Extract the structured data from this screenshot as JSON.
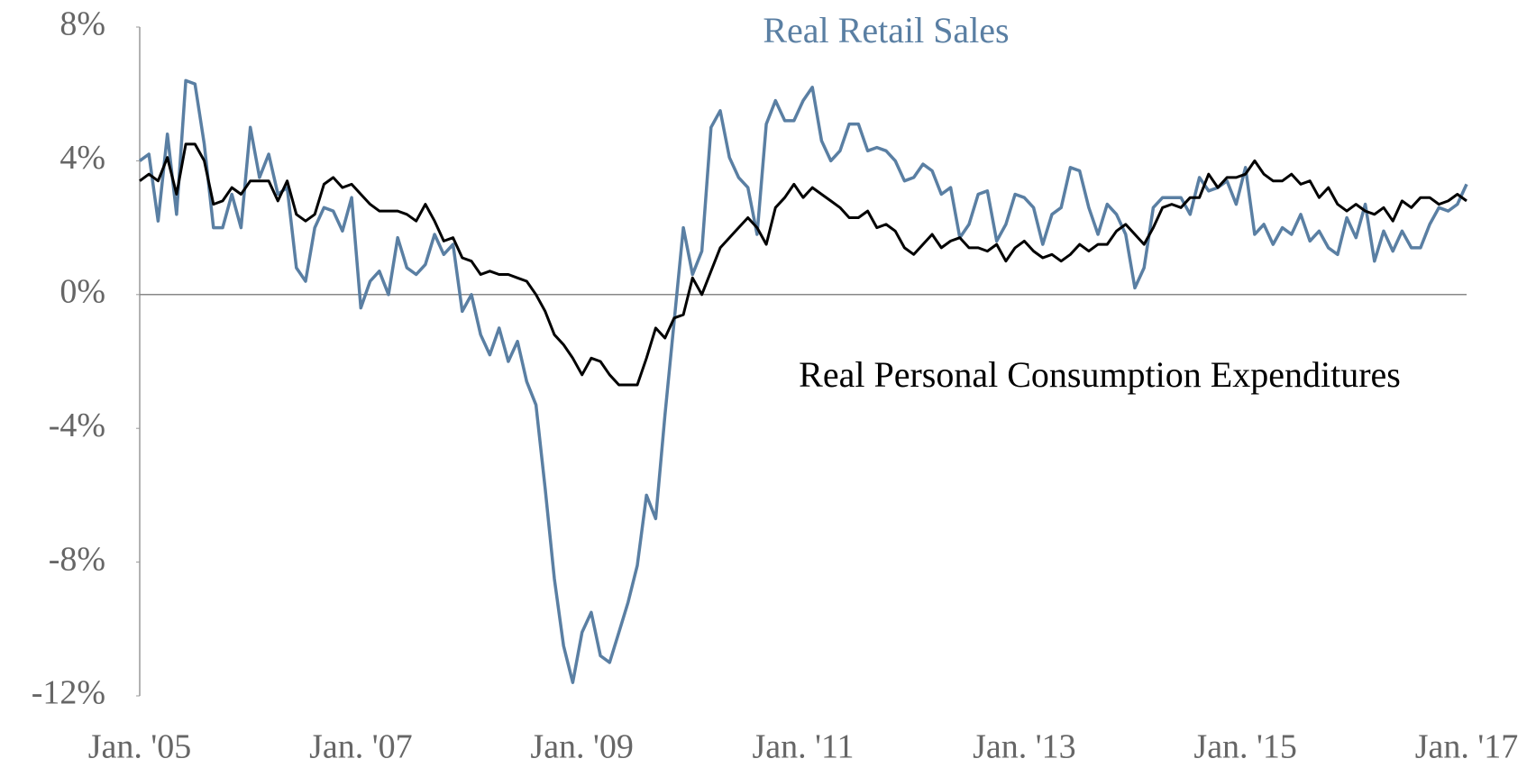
{
  "chart_data": {
    "type": "line",
    "categories": [
      "Jan. '05",
      null,
      null,
      null,
      null,
      null,
      null,
      null,
      null,
      null,
      null,
      null,
      null,
      null,
      null,
      null,
      null,
      null,
      null,
      null,
      null,
      null,
      null,
      null,
      "Jan. '07",
      null,
      null,
      null,
      null,
      null,
      null,
      null,
      null,
      null,
      null,
      null,
      null,
      null,
      null,
      null,
      null,
      null,
      null,
      null,
      null,
      null,
      null,
      null,
      "Jan. '09",
      null,
      null,
      null,
      null,
      null,
      null,
      null,
      null,
      null,
      null,
      null,
      null,
      null,
      null,
      null,
      null,
      null,
      null,
      null,
      null,
      null,
      null,
      null,
      "Jan. '11",
      null,
      null,
      null,
      null,
      null,
      null,
      null,
      null,
      null,
      null,
      null,
      null,
      null,
      null,
      null,
      null,
      null,
      null,
      null,
      null,
      null,
      null,
      null,
      "Jan. '13",
      null,
      null,
      null,
      null,
      null,
      null,
      null,
      null,
      null,
      null,
      null,
      null,
      null,
      null,
      null,
      null,
      null,
      null,
      null,
      null,
      null,
      null,
      null,
      "Jan. '15",
      null,
      null,
      null,
      null,
      null,
      null,
      null,
      null,
      null,
      null,
      null,
      null,
      null,
      null,
      null,
      null,
      null,
      null,
      null,
      null,
      null,
      null,
      null,
      "Jan. '17"
    ],
    "series": [
      {
        "name": "Real Retail Sales",
        "color": "#5a7fa3",
        "values": [
          4.0,
          4.2,
          2.2,
          4.8,
          2.4,
          6.4,
          6.3,
          4.5,
          2.0,
          2.0,
          3.0,
          2.0,
          5.0,
          3.5,
          4.2,
          3.0,
          3.2,
          0.8,
          0.4,
          2.0,
          2.6,
          2.5,
          1.9,
          2.9,
          -0.4,
          0.4,
          0.7,
          0.0,
          1.7,
          0.8,
          0.6,
          0.9,
          1.8,
          1.2,
          1.5,
          -0.5,
          0.0,
          -1.2,
          -1.8,
          -1.0,
          -2.0,
          -1.4,
          -2.6,
          -3.3,
          -5.8,
          -8.5,
          -10.5,
          -11.6,
          -10.1,
          -9.5,
          -10.8,
          -11.0,
          -10.1,
          -9.2,
          -8.1,
          -6.0,
          -6.7,
          -3.6,
          -0.8,
          2.0,
          0.6,
          1.3,
          5.0,
          5.5,
          4.1,
          3.5,
          3.2,
          1.8,
          5.1,
          5.8,
          5.2,
          5.2,
          5.8,
          6.2,
          4.6,
          4.0,
          4.3,
          5.1,
          5.1,
          4.3,
          4.4,
          4.3,
          4.0,
          3.4,
          3.5,
          3.9,
          3.7,
          3.0,
          3.2,
          1.7,
          2.1,
          3.0,
          3.1,
          1.6,
          2.1,
          3.0,
          2.9,
          2.6,
          1.5,
          2.4,
          2.6,
          3.8,
          3.7,
          2.6,
          1.8,
          2.7,
          2.4,
          1.8,
          0.2,
          0.8,
          2.6,
          2.9,
          2.9,
          2.9,
          2.4,
          3.5,
          3.1,
          3.2,
          3.4,
          2.7,
          3.8,
          1.8,
          2.1,
          1.5,
          2.0,
          1.8,
          2.4,
          1.6,
          1.9,
          1.4,
          1.2,
          2.3,
          1.7,
          2.7,
          1.0,
          1.9,
          1.3,
          1.9,
          1.4,
          1.4,
          2.1,
          2.6,
          2.5,
          2.7,
          3.3
        ]
      },
      {
        "name": "Real Personal Consumption Expenditures",
        "color": "#000000",
        "values": [
          3.4,
          3.6,
          3.4,
          4.1,
          3.0,
          4.5,
          4.5,
          4.0,
          2.7,
          2.8,
          3.2,
          3.0,
          3.4,
          3.4,
          3.4,
          2.8,
          3.4,
          2.4,
          2.2,
          2.4,
          3.3,
          3.5,
          3.2,
          3.3,
          3.0,
          2.7,
          2.5,
          2.5,
          2.5,
          2.4,
          2.2,
          2.7,
          2.2,
          1.6,
          1.7,
          1.1,
          1.0,
          0.6,
          0.7,
          0.6,
          0.6,
          0.5,
          0.4,
          0.0,
          -0.5,
          -1.2,
          -1.5,
          -1.9,
          -2.4,
          -1.9,
          -2.0,
          -2.4,
          -2.7,
          -2.7,
          -2.7,
          -1.9,
          -1.0,
          -1.3,
          -0.7,
          -0.6,
          0.5,
          0.0,
          0.7,
          1.4,
          1.7,
          2.0,
          2.3,
          2.0,
          1.5,
          2.6,
          2.9,
          3.3,
          2.9,
          3.2,
          3.0,
          2.8,
          2.6,
          2.3,
          2.3,
          2.5,
          2.0,
          2.1,
          1.9,
          1.4,
          1.2,
          1.5,
          1.8,
          1.4,
          1.6,
          1.7,
          1.4,
          1.4,
          1.3,
          1.5,
          1.0,
          1.4,
          1.6,
          1.3,
          1.1,
          1.2,
          1.0,
          1.2,
          1.5,
          1.3,
          1.5,
          1.5,
          1.9,
          2.1,
          1.8,
          1.5,
          2.0,
          2.6,
          2.7,
          2.6,
          2.9,
          2.9,
          3.6,
          3.2,
          3.5,
          3.5,
          3.6,
          4.0,
          3.6,
          3.4,
          3.4,
          3.6,
          3.3,
          3.4,
          2.9,
          3.2,
          2.7,
          2.5,
          2.7,
          2.5,
          2.4,
          2.6,
          2.2,
          2.8,
          2.6,
          2.9,
          2.9,
          2.7,
          2.8,
          3.0,
          2.8
        ]
      }
    ],
    "ylim": [
      -12,
      8
    ],
    "yticks": [
      {
        "value": -12,
        "label": "-12%"
      },
      {
        "value": -8,
        "label": "-8%"
      },
      {
        "value": -4,
        "label": "-4%"
      },
      {
        "value": 0,
        "label": "0%"
      },
      {
        "value": 4,
        "label": "4%"
      },
      {
        "value": 8,
        "label": "8%"
      }
    ],
    "grid": false
  }
}
